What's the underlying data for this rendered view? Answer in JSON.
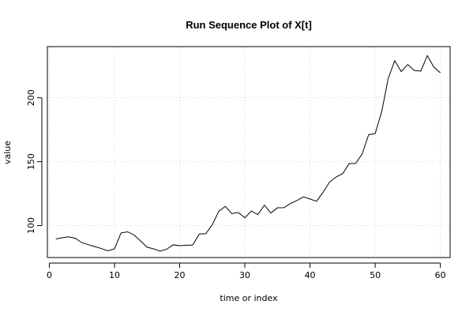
{
  "chart_data": {
    "type": "line",
    "title": "Run Sequence Plot of X[t]",
    "xlabel": "time or index",
    "ylabel": "value",
    "xlim": [
      -0.3,
      61.5
    ],
    "ylim": [
      75,
      240
    ],
    "xticks": [
      0,
      10,
      20,
      30,
      40,
      50,
      60
    ],
    "yticks": [
      100,
      150,
      200
    ],
    "grid": true,
    "line_color": "#000000",
    "grid_color": "#d3d3d3",
    "series": [
      {
        "x": [
          1,
          2,
          3,
          4,
          5,
          6,
          7,
          8,
          9,
          10,
          11,
          12,
          13,
          14,
          15,
          16,
          17,
          18,
          19,
          20,
          21,
          22,
          23,
          24,
          25,
          26,
          27,
          28,
          29,
          30,
          31,
          32,
          33,
          34,
          35,
          36,
          37,
          38,
          39,
          40,
          41,
          42,
          43,
          44,
          45,
          46,
          47,
          48,
          49,
          50,
          51,
          52,
          53,
          54,
          55,
          56,
          57,
          58,
          59,
          60
        ],
        "values": [
          89.5,
          90.5,
          91.2,
          90,
          86.6,
          85,
          83.5,
          82,
          80.3,
          81.8,
          94.2,
          95.1,
          92.7,
          88,
          83.1,
          81.8,
          80,
          81.5,
          85,
          84.3,
          84.6,
          84.8,
          93.4,
          93.6,
          100.6,
          111.2,
          115,
          109.4,
          110.2,
          106.1,
          111.4,
          108.6,
          116,
          109.8,
          113.9,
          114,
          117.3,
          119.6,
          122.5,
          120.8,
          119,
          126,
          134,
          138,
          140.5,
          148.5,
          148.5,
          156,
          171,
          172,
          189,
          215,
          229,
          220.5,
          226,
          221.4,
          220.8,
          233,
          224,
          219.5
        ]
      }
    ]
  }
}
